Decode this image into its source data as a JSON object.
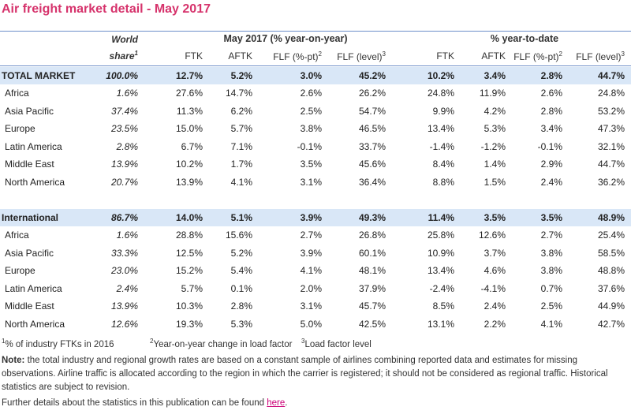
{
  "title": "Air freight market detail - May 2017",
  "header": {
    "world": "World",
    "share": "share",
    "share_sup": "1",
    "group1": "May 2017 (% year-on-year)",
    "group2": "% year-to-date",
    "cols": [
      {
        "label": "FTK",
        "sup": ""
      },
      {
        "label": "AFTK",
        "sup": ""
      },
      {
        "label": "FLF (%-pt)",
        "sup": "2"
      },
      {
        "label": "FLF (level)",
        "sup": "3"
      },
      {
        "label": "FTK",
        "sup": ""
      },
      {
        "label": "AFTK",
        "sup": ""
      },
      {
        "label": "FLF (%-pt)",
        "sup": "2"
      },
      {
        "label": "FLF (level)",
        "sup": "3"
      }
    ]
  },
  "rows": [
    {
      "name": "TOTAL MARKET",
      "share": "100.0%",
      "vals": [
        "12.7%",
        "5.2%",
        "3.0%",
        "45.2%",
        "10.2%",
        "3.4%",
        "2.8%",
        "44.7%"
      ]
    },
    {
      "name": "Africa",
      "share": "1.6%",
      "vals": [
        "27.6%",
        "14.7%",
        "2.6%",
        "26.2%",
        "24.8%",
        "11.9%",
        "2.6%",
        "24.8%"
      ]
    },
    {
      "name": "Asia Pacific",
      "share": "37.4%",
      "vals": [
        "11.3%",
        "6.2%",
        "2.5%",
        "54.7%",
        "9.9%",
        "4.2%",
        "2.8%",
        "53.2%"
      ]
    },
    {
      "name": "Europe",
      "share": "23.5%",
      "vals": [
        "15.0%",
        "5.7%",
        "3.8%",
        "46.5%",
        "13.4%",
        "5.3%",
        "3.4%",
        "47.3%"
      ]
    },
    {
      "name": "Latin America",
      "share": "2.8%",
      "vals": [
        "6.7%",
        "7.1%",
        "-0.1%",
        "33.7%",
        "-1.4%",
        "-1.2%",
        "-0.1%",
        "32.1%"
      ]
    },
    {
      "name": "Middle East",
      "share": "13.9%",
      "vals": [
        "10.2%",
        "1.7%",
        "3.5%",
        "45.6%",
        "8.4%",
        "1.4%",
        "2.9%",
        "44.7%"
      ]
    },
    {
      "name": "North America",
      "share": "20.7%",
      "vals": [
        "13.9%",
        "4.1%",
        "3.1%",
        "36.4%",
        "8.8%",
        "1.5%",
        "2.4%",
        "36.2%"
      ]
    },
    {
      "name": "International",
      "share": "86.7%",
      "vals": [
        "14.0%",
        "5.1%",
        "3.9%",
        "49.3%",
        "11.4%",
        "3.5%",
        "3.5%",
        "48.9%"
      ]
    },
    {
      "name": "Africa",
      "share": "1.6%",
      "vals": [
        "28.8%",
        "15.6%",
        "2.7%",
        "26.8%",
        "25.8%",
        "12.6%",
        "2.7%",
        "25.4%"
      ]
    },
    {
      "name": "Asia Pacific",
      "share": "33.3%",
      "vals": [
        "12.5%",
        "5.2%",
        "3.9%",
        "60.1%",
        "10.9%",
        "3.7%",
        "3.8%",
        "58.5%"
      ]
    },
    {
      "name": "Europe",
      "share": "23.0%",
      "vals": [
        "15.2%",
        "5.4%",
        "4.1%",
        "48.1%",
        "13.4%",
        "4.6%",
        "3.8%",
        "48.8%"
      ]
    },
    {
      "name": "Latin America",
      "share": "2.4%",
      "vals": [
        "5.7%",
        "0.1%",
        "2.0%",
        "37.9%",
        "-2.4%",
        "-4.1%",
        "0.7%",
        "37.6%"
      ]
    },
    {
      "name": "Middle East",
      "share": "13.9%",
      "vals": [
        "10.3%",
        "2.8%",
        "3.1%",
        "45.7%",
        "8.5%",
        "2.4%",
        "2.5%",
        "44.9%"
      ]
    },
    {
      "name": "North America",
      "share": "12.6%",
      "vals": [
        "19.3%",
        "5.3%",
        "5.0%",
        "42.5%",
        "13.1%",
        "2.2%",
        "4.1%",
        "42.7%"
      ]
    }
  ],
  "footnotes": [
    {
      "sup": "1",
      "text": "% of industry FTKs in 2016"
    },
    {
      "sup": "2",
      "text": "Year-on-year change in load factor"
    },
    {
      "sup": "3",
      "text": "Load factor level"
    }
  ],
  "note": {
    "label": "Note:",
    "text": " the total industry and regional growth rates are based on a constant sample of airlines combining reported data and estimates for missing observations. Airline traffic is allocated according to the region in which the carrier is registered; it should not be considered as regional traffic. Historical statistics are subject to revision."
  },
  "further": {
    "text": "Further details about the statistics in this publication can be found ",
    "link": "here",
    "end": "."
  },
  "colors": {
    "title": "#d6336c",
    "highlight": "#d9e7f7",
    "rule": "#6d8fc9",
    "link": "#cc0077"
  }
}
